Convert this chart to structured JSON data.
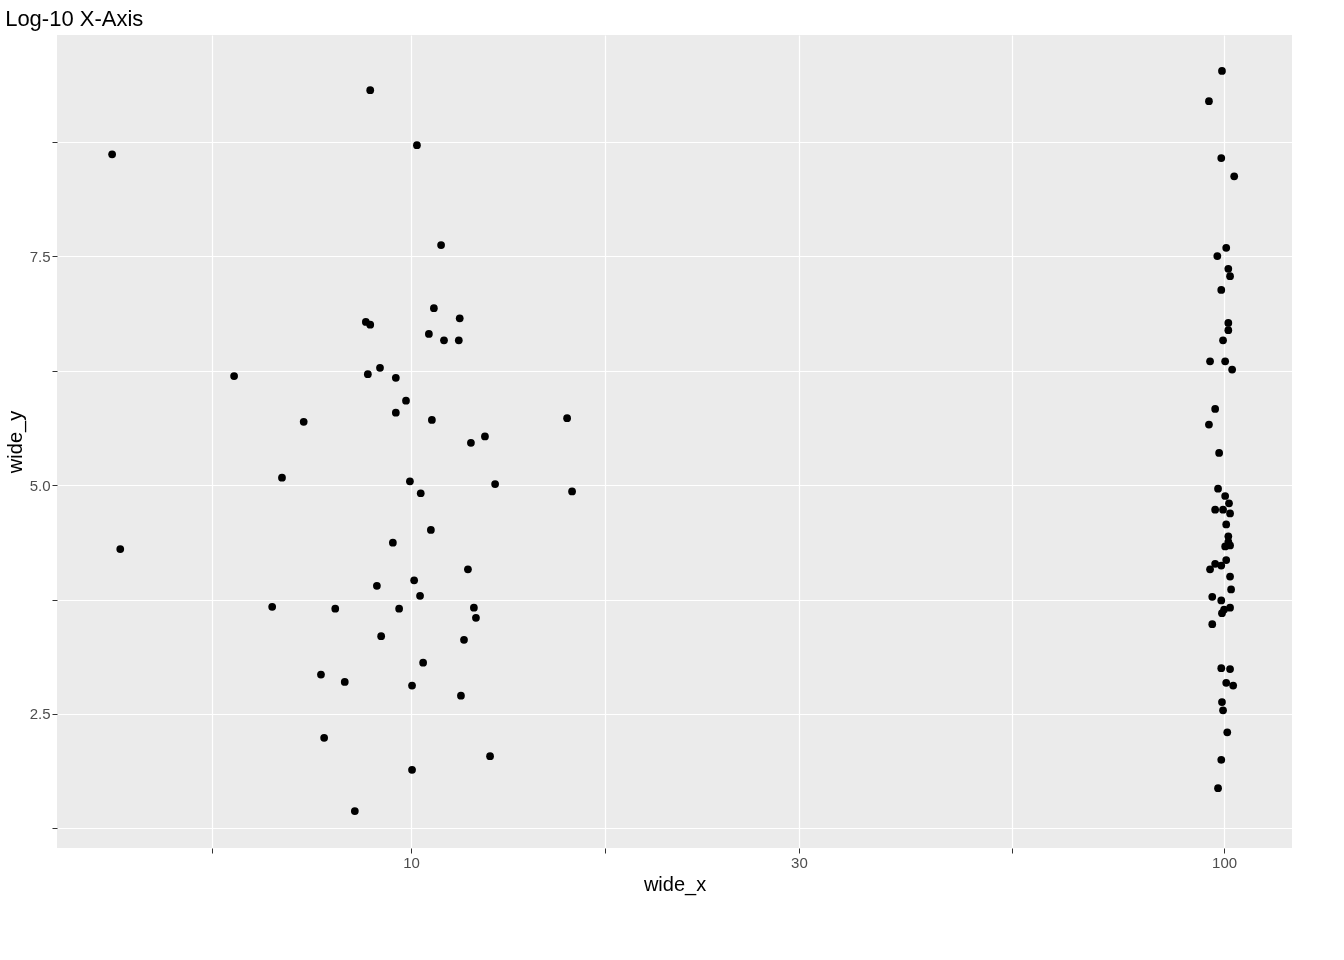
{
  "chart_data": {
    "type": "scatter",
    "title": "Log-10 X-Axis",
    "xlabel": "wide_x",
    "ylabel": "wide_y",
    "log": "x",
    "grid": true,
    "marker": "circle",
    "xlim": [
      3.67,
      121.2
    ],
    "ylim": [
      1.037,
      9.913
    ],
    "xticks": [
      {
        "value": 5.7,
        "label": null
      },
      10,
      {
        "value": 17.3,
        "label": null
      },
      30,
      {
        "value": 54.8,
        "label": null
      },
      100
    ],
    "yticks": [
      {
        "value": 1.25,
        "label": null
      },
      2.5,
      {
        "value": 3.75,
        "label": null
      },
      {
        "value": 5,
        "label": "5.0"
      },
      {
        "value": 6.25,
        "label": null
      },
      7.5,
      {
        "value": 8.75,
        "label": null
      }
    ],
    "series": [
      {
        "color": "#000000",
        "x": [
          4.29,
          4.39,
          6.06,
          6.75,
          6.94,
          7.38,
          7.75,
          7.82,
          8.07,
          8.29,
          8.53,
          8.8,
          8.91,
          8.91,
          8.85,
          9.16,
          9.08,
          9.19,
          9.5,
          9.58,
          9.58,
          9.67,
          9.86,
          9.97,
          10.03,
          10.03,
          10.09,
          10.17,
          10.26,
          10.28,
          10.35,
          10.52,
          10.58,
          10.61,
          10.67,
          10.89,
          10.98,
          11.45,
          11.48,
          11.52,
          11.62,
          11.75,
          11.85,
          11.95,
          12.02,
          12.33,
          12.51,
          12.69,
          15.56,
          15.78,
          99.4,
          95.8,
          99.2,
          102.9,
          100.6,
          98.1,
          101.2,
          101.7,
          99.2,
          101.2,
          101.2,
          99.7,
          96.1,
          100.3,
          102.3,
          97.5,
          95.8,
          98.6,
          98.3,
          100.3,
          101.4,
          97.5,
          99.7,
          101.7,
          100.6,
          101.2,
          101.2,
          100.3,
          101.7,
          100.6,
          97.5,
          99.2,
          96.1,
          101.7,
          102.0,
          96.7,
          99.2,
          100.0,
          101.7,
          99.4,
          96.7,
          99.2,
          101.7,
          100.6,
          102.6,
          99.4,
          99.7,
          100.9,
          99.2,
          98.3
        ],
        "values": [
          8.61,
          4.3,
          6.19,
          3.67,
          5.08,
          5.69,
          2.93,
          2.24,
          3.65,
          2.85,
          1.44,
          6.78,
          9.31,
          6.75,
          6.21,
          6.28,
          3.9,
          3.35,
          4.37,
          6.17,
          5.79,
          3.65,
          5.92,
          5.04,
          2.81,
          1.89,
          3.96,
          8.71,
          3.79,
          4.91,
          3.06,
          6.65,
          4.51,
          5.71,
          6.93,
          7.62,
          6.58,
          6.58,
          6.82,
          2.7,
          3.31,
          4.08,
          5.46,
          3.66,
          3.55,
          5.53,
          2.04,
          5.01,
          5.73,
          4.93,
          9.52,
          9.19,
          8.57,
          8.37,
          7.59,
          7.5,
          7.36,
          7.28,
          7.13,
          6.77,
          6.69,
          6.58,
          6.35,
          6.35,
          6.26,
          5.83,
          5.66,
          5.35,
          4.96,
          4.88,
          4.8,
          4.73,
          4.73,
          4.69,
          4.57,
          4.44,
          4.38,
          4.33,
          4.34,
          4.18,
          4.14,
          4.12,
          4.08,
          4.0,
          3.86,
          3.78,
          3.74,
          3.64,
          3.66,
          3.6,
          3.48,
          3.0,
          2.99,
          2.84,
          2.81,
          2.63,
          2.54,
          2.3,
          2.0,
          1.69
        ]
      }
    ]
  }
}
